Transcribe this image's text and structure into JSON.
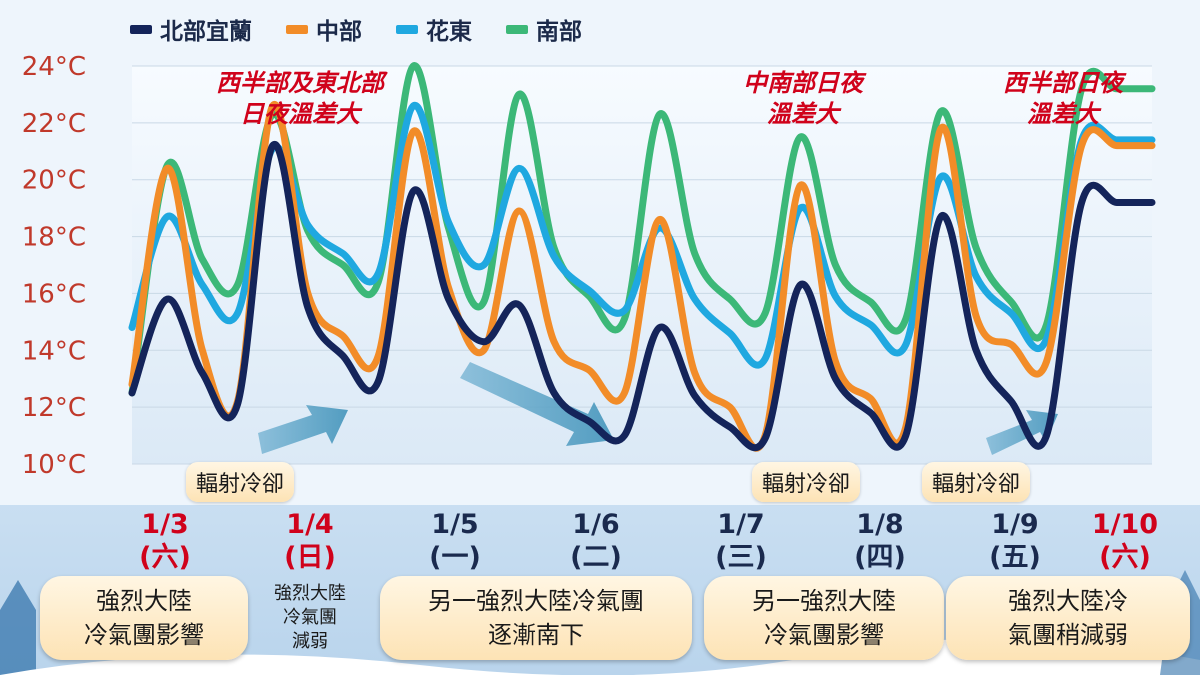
{
  "chart_data": {
    "type": "line",
    "yunit": "°C",
    "ylim": [
      10,
      24
    ],
    "yticks": [
      10,
      12,
      14,
      16,
      18,
      20,
      22,
      24
    ],
    "ytick_labels": [
      "10°C",
      "12°C",
      "14°C",
      "16°C",
      "18°C",
      "20°C",
      "22°C",
      "24°C"
    ],
    "x": [
      0,
      0.25,
      0.5,
      0.75,
      1,
      1.25,
      1.5,
      1.75,
      2,
      2.25,
      2.5,
      2.75,
      3,
      3.25,
      3.5,
      3.75,
      4,
      4.25,
      4.5,
      4.75,
      5,
      5.25,
      5.5,
      5.75,
      6,
      6.25,
      6.5,
      6.75,
      7,
      7.25
    ],
    "categories": [
      "1/3",
      "1/4",
      "1/5",
      "1/6",
      "1/7",
      "1/8",
      "1/9",
      "1/10"
    ],
    "category_weekdays": [
      "(六)",
      "(日)",
      "(一)",
      "(二)",
      "(三)",
      "(四)",
      "(五)",
      "(六)"
    ],
    "category_colors": [
      "#d0021b",
      "#d0021b",
      "#1a2a4e",
      "#1a2a4e",
      "#1a2a4e",
      "#1a2a4e",
      "#1a2a4e",
      "#d0021b"
    ],
    "series": [
      {
        "name": "北部宜蘭",
        "color": "#14245a",
        "values": [
          12.5,
          15.8,
          13.2,
          12.1,
          21.2,
          15.5,
          13.8,
          12.9,
          19.6,
          15.8,
          14.3,
          15.6,
          12.5,
          11.5,
          11.0,
          14.8,
          12.4,
          11.3,
          10.9,
          16.3,
          13.0,
          11.8,
          11.0,
          18.7,
          14.0,
          12.2,
          11.0,
          19.2,
          19.2,
          19.2
        ]
      },
      {
        "name": "中部",
        "color": "#f28c28",
        "values": [
          12.8,
          20.4,
          14.0,
          12.2,
          22.6,
          16.0,
          14.5,
          13.8,
          21.7,
          16.2,
          14.0,
          18.9,
          14.3,
          13.3,
          12.5,
          18.6,
          13.2,
          12.0,
          11.0,
          19.8,
          13.6,
          12.3,
          11.3,
          21.8,
          15.2,
          14.2,
          13.6,
          21.2,
          21.2,
          21.2
        ]
      },
      {
        "name": "花東",
        "color": "#1fa8e0",
        "values": [
          14.8,
          18.7,
          16.3,
          15.3,
          21.1,
          18.4,
          17.4,
          16.7,
          22.6,
          18.5,
          17.0,
          20.4,
          17.3,
          16.1,
          15.4,
          18.3,
          15.8,
          14.6,
          13.7,
          19.0,
          15.9,
          14.9,
          14.2,
          20.1,
          16.6,
          15.3,
          14.4,
          21.4,
          21.4,
          21.4
        ]
      },
      {
        "name": "南部",
        "color": "#3cb878",
        "values": [
          12.5,
          20.5,
          17.2,
          16.3,
          22.3,
          18.2,
          17.0,
          16.4,
          24.0,
          18.3,
          15.7,
          23.0,
          17.6,
          15.9,
          15.1,
          22.3,
          17.4,
          15.8,
          15.3,
          21.5,
          17.0,
          15.7,
          15.1,
          22.4,
          17.6,
          15.7,
          14.9,
          23.2,
          23.2,
          23.2
        ]
      }
    ],
    "annotations": [
      {
        "lines": [
          "西半部及東北部",
          "日夜溫差大"
        ]
      },
      {
        "lines": [
          "中南部日夜",
          "溫差大"
        ]
      },
      {
        "lines": [
          "西半部日夜",
          "溫差大"
        ]
      }
    ],
    "radiative_cooling_label": "輻射冷卻",
    "legend_position": "top"
  },
  "boxes": [
    {
      "lines": [
        "強烈大陸",
        "冷氣團影響"
      ]
    },
    {
      "lines": [
        "強烈大陸",
        "冷氣團",
        "減弱"
      ]
    },
    {
      "lines": [
        "另一強烈大陸冷氣團",
        "逐漸南下"
      ]
    },
    {
      "lines": [
        "另一強烈大陸",
        "冷氣團影響"
      ]
    },
    {
      "lines": [
        "強烈大陸冷",
        "氣團稍減弱"
      ]
    }
  ]
}
